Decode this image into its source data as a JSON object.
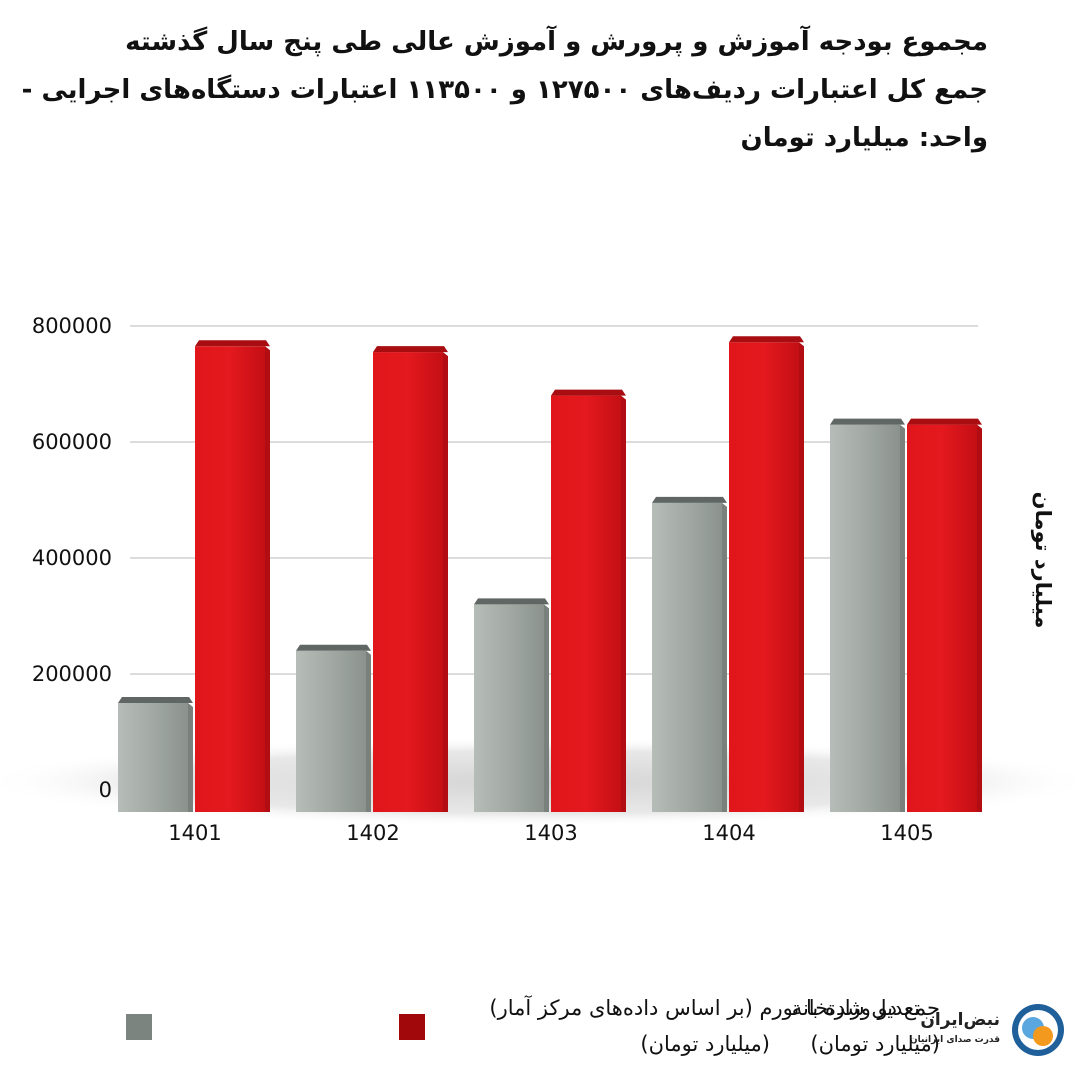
{
  "header": {
    "title_lines": [
      "مجموع بودجه آموزش و پرورش و آموزش عالی طی پنج سال گذشته",
      "جمع کل اعتبارات ردیف‌های ۱۲۷۵۰۰ و ۱۱۳۵۰۰ اعتبارات دستگاه‌های اجرایی -",
      "واحد: میلیارد تومان"
    ]
  },
  "legend": {
    "gray": {
      "line1": "جمع دو وزارتخانه",
      "line2": "(میلیارد تومان)"
    },
    "red": {
      "line1": "تعدیل شده با تورم (بر اساس داده‌های مرکز آمار)",
      "line2": "(میلیارد تومان)"
    }
  },
  "logo": {
    "name": "نبض‌ایران",
    "tagline": "قدرت صدای ایرانیان",
    "icon": "nabz-iran-logo-icon"
  },
  "chart_data": {
    "type": "bar",
    "title": "مجموع بودجه آموزش و پرورش و آموزش عالی طی پنج سال گذشته",
    "ylabel": "میلیارد تومان",
    "xlabel": "",
    "categories": [
      "1401",
      "1402",
      "1403",
      "1404",
      "1405"
    ],
    "series": [
      {
        "name": "جمع دو وزارتخانه (میلیارد تومان)",
        "color": "#8e9591",
        "values": [
          150000,
          240000,
          320000,
          495000,
          630000
        ]
      },
      {
        "name": "تعدیل شده با تورم (بر اساس داده‌های مرکز آمار) (میلیارد تومان)",
        "color": "#cc0f14",
        "values": [
          765000,
          755000,
          680000,
          772000,
          630000
        ]
      }
    ],
    "yticks": [
      "0",
      "200000",
      "400000",
      "600000",
      "800000"
    ],
    "ylim": [
      0,
      800000
    ],
    "grid": true,
    "legend_position": "bottom"
  }
}
